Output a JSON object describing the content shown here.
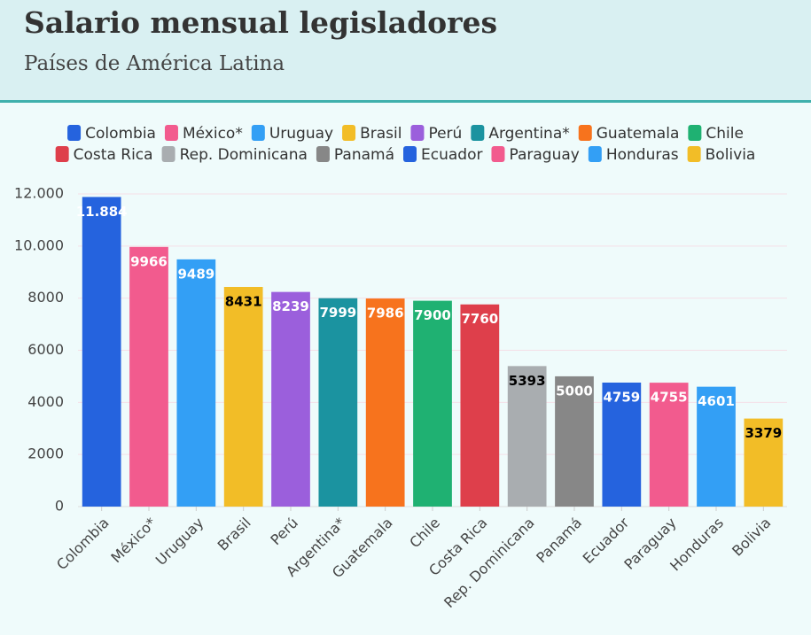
{
  "chart_data": {
    "type": "bar",
    "title": "Salario mensual legisladores",
    "subtitle": "Países de América Latina",
    "categories": [
      "Colombia",
      "México*",
      "Uruguay",
      "Brasil",
      "Perú",
      "Argentina*",
      "Guatemala",
      "Chile",
      "Costa Rica",
      "Rep. Dominicana",
      "Panamá",
      "Ecuador",
      "Paraguay",
      "Honduras",
      "Bolivia"
    ],
    "values": [
      11884,
      9966,
      9489,
      8431,
      8239,
      7999,
      7986,
      7900,
      7760,
      5393,
      5000,
      4759,
      4755,
      4601,
      3379
    ],
    "value_labels": [
      "11.884",
      "9966",
      "9489",
      "8431",
      "8239",
      "7999",
      "7986",
      "7900",
      "7760",
      "5393",
      "5000",
      "4759",
      "4755",
      "4601",
      "3379"
    ],
    "colors": [
      "#2563de",
      "#f25b8e",
      "#339ff5",
      "#f2bd27",
      "#9b5fdc",
      "#1b93a0",
      "#f7731d",
      "#1fb172",
      "#de3f4b",
      "#a9adb0",
      "#878787",
      "#2563de",
      "#f25b8e",
      "#339ff5",
      "#f2bd27"
    ],
    "ylim": [
      0,
      12000
    ],
    "yticks": [
      0,
      2000,
      4000,
      6000,
      8000,
      {
        "value": 10000,
        "label": "10.000"
      },
      {
        "value": 12000,
        "label": "12.000"
      }
    ],
    "grid": true,
    "legend": "top"
  }
}
